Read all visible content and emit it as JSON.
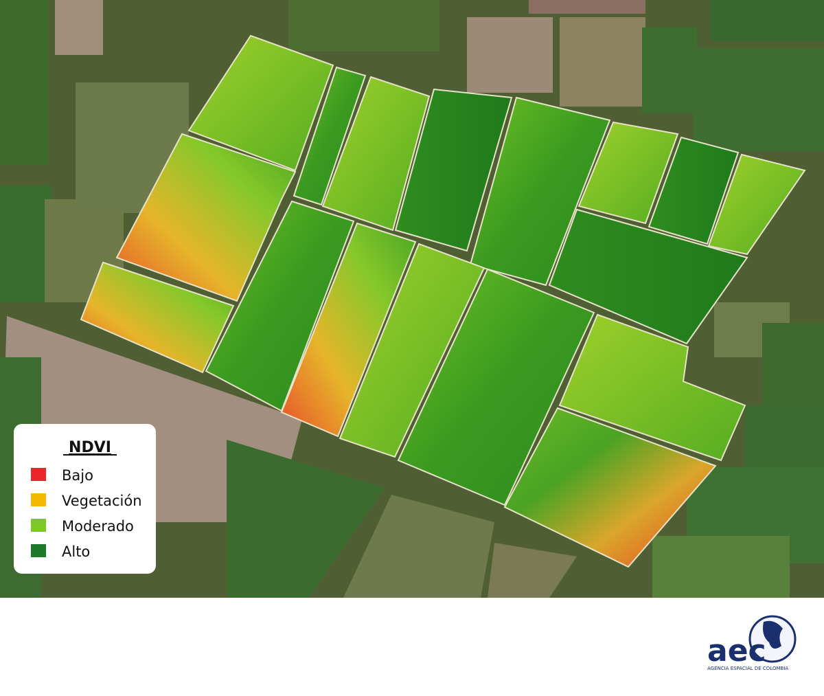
{
  "legend": {
    "title": "NDVI",
    "items": [
      {
        "label": "Bajo",
        "color": "#e8262a"
      },
      {
        "label": "Vegetación",
        "color": "#f5b800"
      },
      {
        "label": "Moderado",
        "color": "#7ec825"
      },
      {
        "label": "Alto",
        "color": "#1e7a2a"
      }
    ]
  },
  "logo": {
    "name": "aec",
    "subtitle": "AGENCIA ESPACIAL DE COLOMBIA"
  }
}
